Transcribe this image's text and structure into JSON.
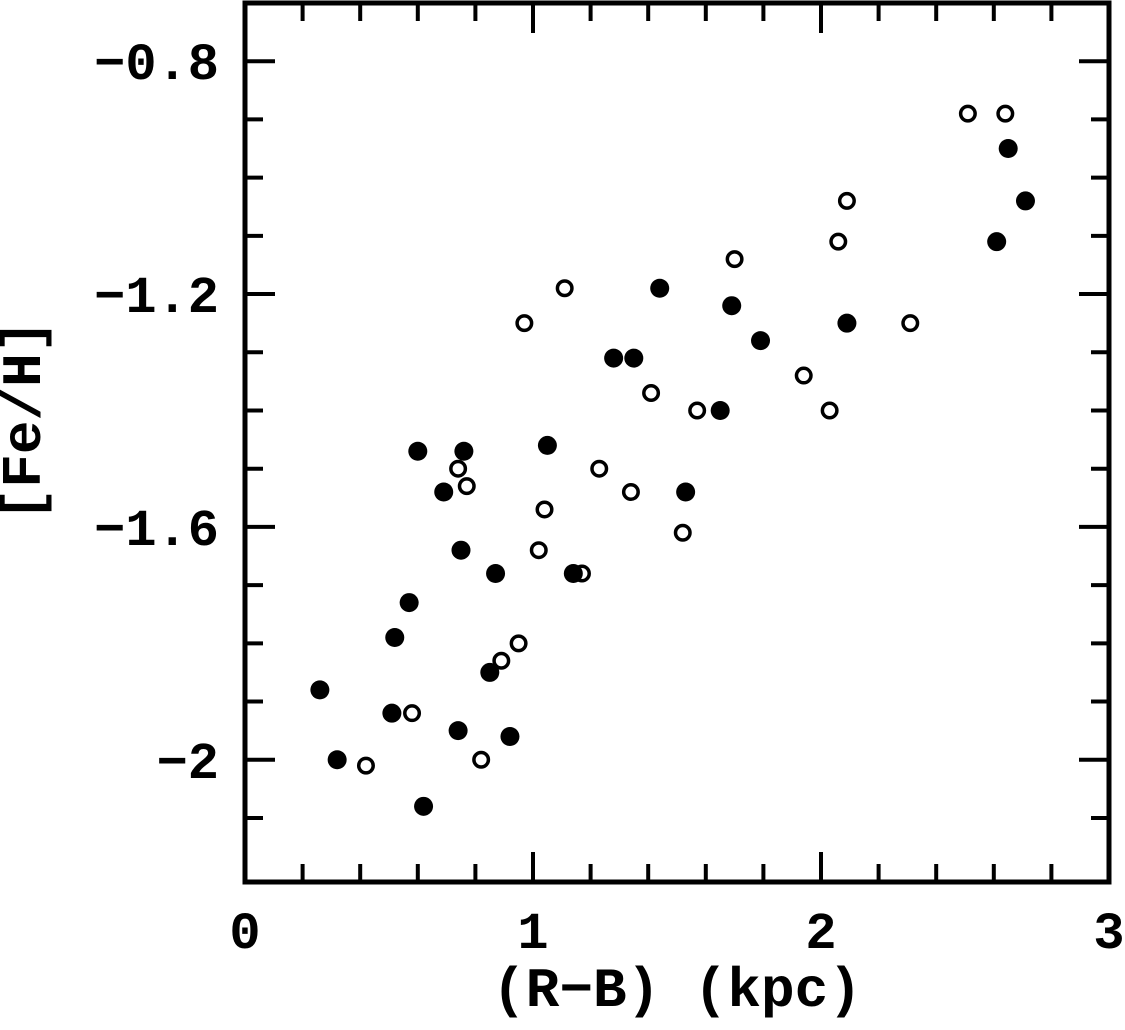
{
  "figure": {
    "background": "#ffffff",
    "foreground": "#000000"
  },
  "chart_data": {
    "type": "scatter",
    "title": "",
    "xlabel": "(R−B) (kpc)",
    "ylabel": "[Fe/H]",
    "xlim": [
      0,
      3
    ],
    "ylim": [
      -2.21,
      -0.7
    ],
    "grid": false,
    "legend": "none",
    "x_major_ticks": [
      0,
      1,
      2,
      3
    ],
    "x_tick_labels": [
      "0",
      "1",
      "2",
      "3"
    ],
    "x_minor_tick_step": 0.2,
    "y_major_ticks": [
      -0.8,
      -1.2,
      -1.6,
      -2.0
    ],
    "y_tick_labels": [
      "−0.8",
      "−1.2",
      "−1.6",
      "−2"
    ],
    "y_minor_tick_step": 0.1,
    "series": [
      {
        "name": "filled circles",
        "marker": "filled-circle",
        "color": "#000000",
        "points": [
          [
            2.65,
            -0.95
          ],
          [
            2.71,
            -1.04
          ],
          [
            2.61,
            -1.11
          ],
          [
            1.44,
            -1.19
          ],
          [
            1.69,
            -1.22
          ],
          [
            2.09,
            -1.25
          ],
          [
            1.79,
            -1.28
          ],
          [
            1.28,
            -1.31
          ],
          [
            1.35,
            -1.31
          ],
          [
            1.65,
            -1.4
          ],
          [
            0.6,
            -1.47
          ],
          [
            0.76,
            -1.47
          ],
          [
            1.05,
            -1.46
          ],
          [
            0.69,
            -1.54
          ],
          [
            1.53,
            -1.54
          ],
          [
            0.75,
            -1.64
          ],
          [
            0.87,
            -1.68
          ],
          [
            1.14,
            -1.68
          ],
          [
            0.57,
            -1.73
          ],
          [
            0.52,
            -1.79
          ],
          [
            0.85,
            -1.85
          ],
          [
            0.26,
            -1.88
          ],
          [
            0.51,
            -1.92
          ],
          [
            0.74,
            -1.95
          ],
          [
            0.92,
            -1.96
          ],
          [
            0.32,
            -2.0
          ],
          [
            0.62,
            -2.08
          ]
        ]
      },
      {
        "name": "open circles",
        "marker": "open-circle",
        "color": "#000000",
        "points": [
          [
            2.51,
            -0.89
          ],
          [
            2.64,
            -0.89
          ],
          [
            2.09,
            -1.04
          ],
          [
            2.06,
            -1.11
          ],
          [
            1.7,
            -1.14
          ],
          [
            1.11,
            -1.19
          ],
          [
            0.97,
            -1.25
          ],
          [
            2.31,
            -1.25
          ],
          [
            1.94,
            -1.34
          ],
          [
            1.41,
            -1.37
          ],
          [
            1.57,
            -1.4
          ],
          [
            2.03,
            -1.4
          ],
          [
            0.74,
            -1.5
          ],
          [
            1.23,
            -1.5
          ],
          [
            0.77,
            -1.53
          ],
          [
            1.04,
            -1.57
          ],
          [
            1.34,
            -1.54
          ],
          [
            1.02,
            -1.64
          ],
          [
            1.52,
            -1.61
          ],
          [
            1.17,
            -1.68
          ],
          [
            0.95,
            -1.8
          ],
          [
            0.89,
            -1.83
          ],
          [
            0.58,
            -1.92
          ],
          [
            0.42,
            -2.01
          ],
          [
            0.82,
            -2.0
          ]
        ]
      }
    ]
  }
}
